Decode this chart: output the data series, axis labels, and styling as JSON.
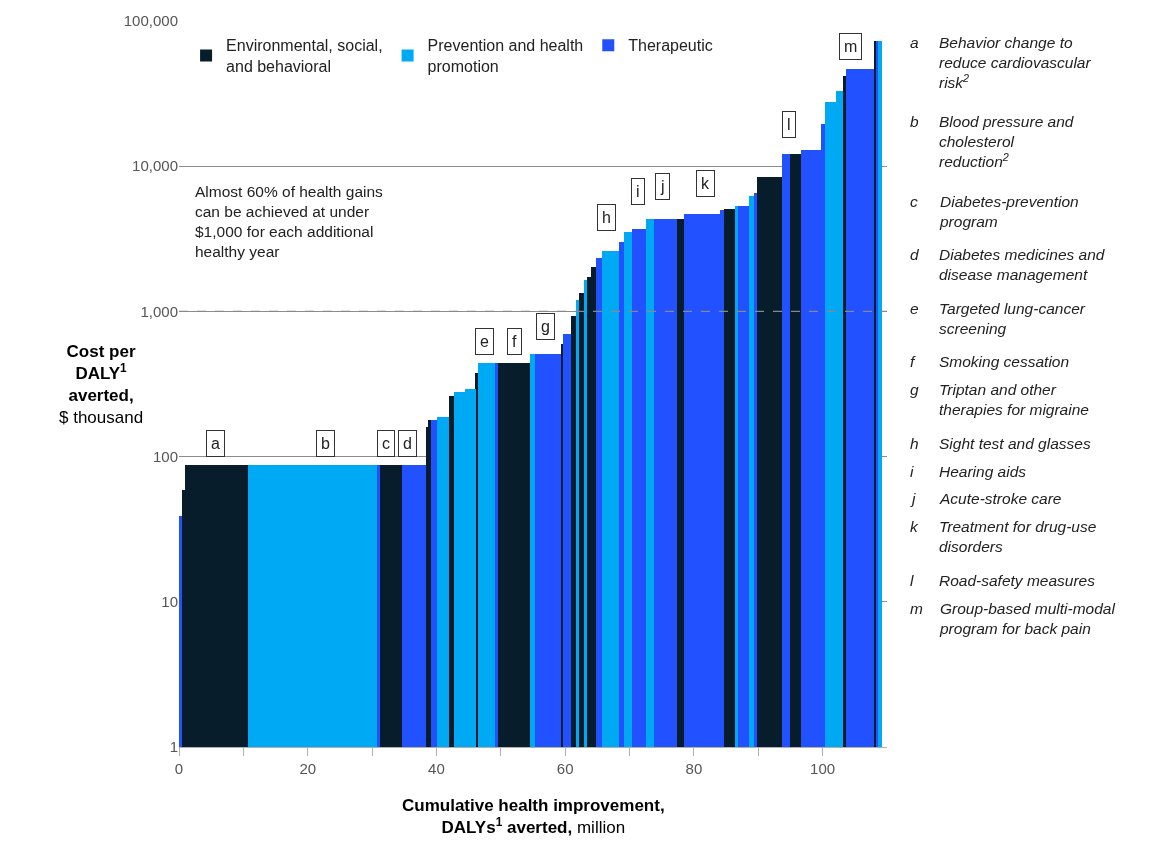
{
  "chart_data": {
    "type": "histogram",
    "xlabel": "Cumulative health improvement, DALYs$^{1}$ averted, million",
    "ylabel": "Cost per DALY$^{1}$ averted, $ thousand",
    "bins": [
      0,
      0.5,
      0.9,
      10.7,
      30.7,
      31.3,
      34.7,
      38.3,
      38.7,
      39.1,
      40.1,
      41.9,
      42.8,
      44.5,
      46.1,
      46.4,
      49.1,
      49.6,
      54.5,
      55.3,
      59.3,
      59.7,
      60.9,
      61.7,
      62.1,
      62.9,
      63.4,
      64.0,
      64.8,
      65.7,
      68.4,
      69.2,
      70.4,
      72.6,
      73.8,
      77.3,
      78.5,
      84.0,
      84.6,
      86.4,
      86.8,
      88.6,
      89.3,
      89.8,
      93.7,
      94.9,
      96.6,
      99.7,
      100.3,
      102.0,
      103.1,
      103.6,
      108.0,
      108.3,
      108.6,
      109.2
    ],
    "series": [
      {
        "name": "Environmental, social, and behavioral",
        "color": "#071d2b",
        "values": [
          null,
          58,
          86,
          null,
          null,
          86,
          null,
          158,
          177,
          null,
          null,
          262,
          null,
          null,
          376,
          null,
          null,
          440,
          null,
          null,
          593,
          null,
          930,
          null,
          1340,
          null,
          1730,
          2020,
          null,
          null,
          null,
          null,
          null,
          null,
          null,
          4300,
          null,
          null,
          5100,
          null,
          null,
          null,
          null,
          8400,
          null,
          12200,
          null,
          null,
          null,
          null,
          42100,
          null,
          73000,
          null,
          null
        ]
      },
      {
        "name": "Prevention and health promotion",
        "color": "#00a9f4",
        "values": [
          null,
          null,
          null,
          86,
          null,
          null,
          null,
          null,
          null,
          null,
          185,
          null,
          279,
          293,
          null,
          440,
          null,
          null,
          507,
          null,
          null,
          null,
          null,
          1200,
          null,
          1640,
          null,
          null,
          null,
          2600,
          null,
          3500,
          null,
          4300,
          null,
          null,
          null,
          null,
          null,
          5300,
          null,
          6200,
          null,
          null,
          null,
          null,
          null,
          null,
          27600,
          32700,
          null,
          null,
          null,
          null,
          73000
        ]
      },
      {
        "name": "Therapeutic",
        "color": "#2251ff",
        "values": [
          38,
          null,
          null,
          null,
          86,
          null,
          86,
          null,
          null,
          177,
          null,
          null,
          null,
          null,
          null,
          null,
          440,
          null,
          null,
          507,
          null,
          695,
          null,
          null,
          null,
          null,
          null,
          null,
          2330,
          null,
          3000,
          null,
          3700,
          null,
          4300,
          null,
          4700,
          5000,
          null,
          null,
          5300,
          null,
          6500,
          null,
          12200,
          null,
          12900,
          19500,
          null,
          null,
          null,
          46600,
          null,
          73000,
          null
        ]
      }
    ],
    "log": "y",
    "xlim": [
      0,
      110
    ],
    "xticks": [
      0,
      {
        "value": 10,
        "label": null
      },
      20,
      {
        "value": 30,
        "label": null
      },
      40,
      {
        "value": 50,
        "label": null
      },
      60,
      {
        "value": 70,
        "label": null
      },
      80,
      {
        "value": 90,
        "label": null
      },
      100
    ],
    "ylim": [
      1,
      100000
    ],
    "yticks": [
      1,
      10,
      100,
      {
        "value": 1000,
        "label": "1,000"
      },
      {
        "value": 10000,
        "label": "10,000"
      },
      {
        "value": 100000,
        "label": "100,000"
      }
    ],
    "grid": "y",
    "legend": "top left",
    "ref_lines": [
      {
        "axis": "y",
        "value": 1000,
        "color": "#888888",
        "line_style": "dashed"
      }
    ],
    "annotations": [
      {
        "text": "a",
        "x": 5.6,
        "y": 123
      },
      {
        "text": "b",
        "x": 22.7,
        "y": 123
      },
      {
        "text": "c",
        "x": 32.2,
        "y": 123
      },
      {
        "text": "d",
        "x": 35.5,
        "y": 123
      },
      {
        "text": "e",
        "x": 47.4,
        "y": 620
      },
      {
        "text": "f",
        "x": 52.2,
        "y": 620
      },
      {
        "text": "g",
        "x": 57.0,
        "y": 790
      },
      {
        "text": "h",
        "x": 66.4,
        "y": 4400
      },
      {
        "text": "i",
        "x": 71.3,
        "y": 6700
      },
      {
        "text": "j",
        "x": 75.1,
        "y": 7200
      },
      {
        "text": "k",
        "x": 81.8,
        "y": 7600
      },
      {
        "text": "l",
        "x": 94.7,
        "y": 19500
      },
      {
        "text": "m",
        "x": 104.4,
        "y": 67000
      },
      "Almost 60% of health gains can be achieved at under $1,000 for each additional healthy year",
      "a Behavior change to reduce cardiovascular risk$^{2}$",
      "b Blood pressure and cholesterol reduction$^{2}$",
      "c Diabetes-prevention program",
      "d Diabetes medicines and disease management",
      "e Targeted lung-cancer screening",
      "f Smoking cessation",
      "g Triptan and other therapies for migraine",
      "h Sight test and glasses",
      "i Hearing aids",
      "j Acute-stroke care",
      "k Treatment for drug-use disorders",
      "l Road-safety measures",
      "m Group-based multi-modal program for back pain"
    ]
  }
}
